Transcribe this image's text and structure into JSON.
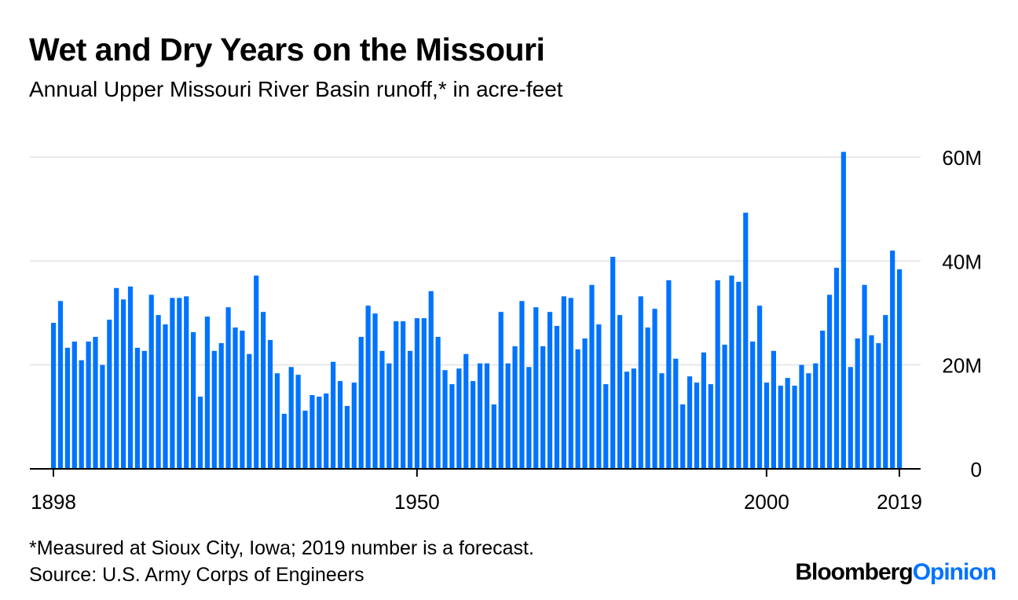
{
  "header": {
    "title": "Wet and Dry Years on the Missouri",
    "subtitle": "Annual Upper Missouri River Basin runoff,* in acre-feet"
  },
  "footer": {
    "note": "*Measured at Sioux City, Iowa; 2019 number is a forecast.",
    "source": "Source: U.S. Army Corps of Engineers",
    "logo_brand": "Bloomberg",
    "logo_section": "Opinion"
  },
  "colors": {
    "bar": "#0073ff",
    "grid": "#e8e8e8",
    "axis": "#000000"
  },
  "chart_data": {
    "type": "bar",
    "title": "Wet and Dry Years on the Missouri",
    "ylabel": "acre-feet (millions)",
    "ylim": [
      0,
      60
    ],
    "yticks": [
      {
        "value": 0,
        "label": "0"
      },
      {
        "value": 20,
        "label": "20M"
      },
      {
        "value": 40,
        "label": "40M"
      },
      {
        "value": 60,
        "label": "60M"
      }
    ],
    "xticks": [
      {
        "value": 1898,
        "label": "1898"
      },
      {
        "value": 1950,
        "label": "1950"
      },
      {
        "value": 2000,
        "label": "2000"
      },
      {
        "value": 2019,
        "label": "2019"
      }
    ],
    "grid": true,
    "x_start": 1898,
    "values": [
      28.1,
      32.3,
      23.3,
      24.5,
      20.9,
      24.5,
      25.4,
      20.0,
      28.7,
      34.8,
      32.6,
      35.1,
      23.3,
      22.7,
      33.5,
      29.6,
      27.8,
      32.9,
      32.9,
      33.2,
      26.3,
      13.9,
      29.3,
      22.7,
      24.2,
      31.1,
      27.2,
      26.6,
      22.1,
      37.2,
      30.2,
      24.8,
      18.4,
      10.6,
      19.6,
      18.1,
      11.2,
      14.2,
      13.9,
      14.5,
      20.6,
      16.9,
      12.1,
      16.6,
      25.4,
      31.4,
      29.9,
      22.7,
      20.3,
      28.4,
      28.4,
      22.7,
      29.0,
      29.0,
      34.2,
      25.4,
      19.0,
      16.3,
      19.3,
      22.1,
      16.9,
      20.3,
      20.3,
      12.4,
      30.2,
      20.3,
      23.6,
      32.3,
      19.6,
      31.1,
      23.6,
      30.2,
      27.5,
      33.2,
      32.9,
      23.0,
      25.1,
      35.4,
      27.8,
      16.3,
      40.8,
      29.6,
      18.7,
      19.3,
      33.2,
      27.2,
      30.8,
      18.4,
      36.3,
      21.2,
      12.4,
      17.8,
      16.6,
      22.4,
      16.3,
      36.3,
      23.9,
      37.2,
      36.0,
      49.3,
      24.5,
      31.4,
      16.6,
      22.7,
      16.0,
      17.5,
      16.0,
      20.0,
      18.4,
      20.3,
      26.6,
      33.5,
      38.7,
      61.0,
      19.6,
      25.1,
      35.4,
      25.7,
      24.2,
      29.6,
      42.0,
      38.4
    ]
  }
}
